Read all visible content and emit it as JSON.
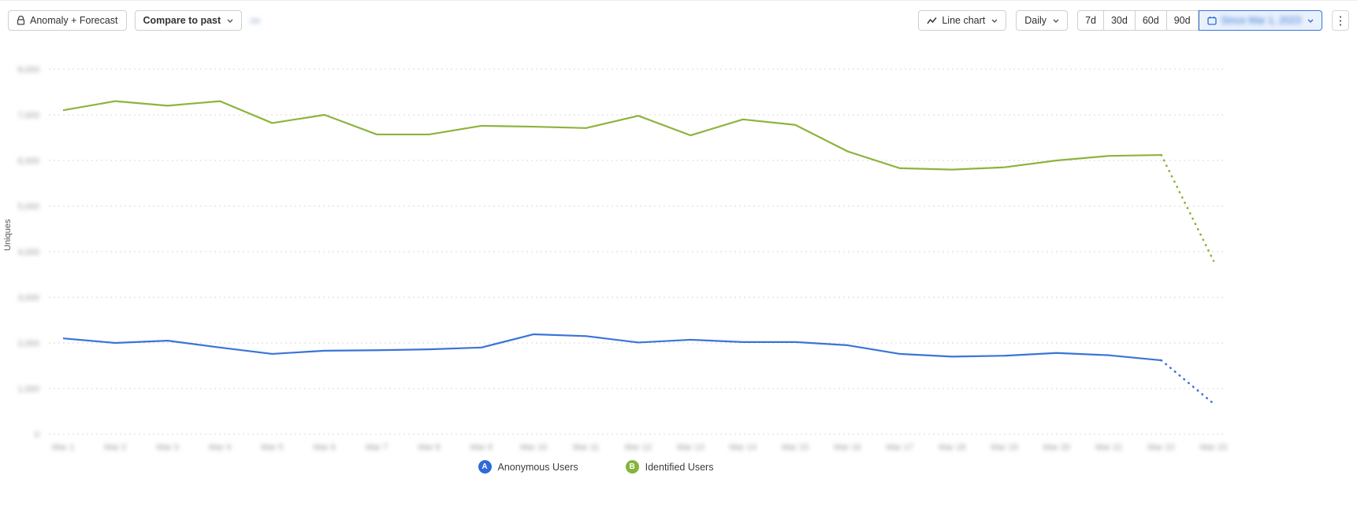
{
  "toolbar": {
    "anomaly": {
      "label": "Anomaly + Forecast"
    },
    "compare": {
      "label": "Compare to past"
    },
    "chart_type": {
      "label": "Line chart"
    },
    "granularity": {
      "label": "Daily"
    },
    "ranges": [
      {
        "label": "7d"
      },
      {
        "label": "30d"
      },
      {
        "label": "60d"
      },
      {
        "label": "90d"
      }
    ],
    "date_range": {
      "label": "Since Mar 1, 2023"
    },
    "more": {
      "label": "⋮"
    }
  },
  "colors": {
    "anonymous_blue": "#3a74d8",
    "identified_green": "#8cb43d",
    "grid": "#d9d9d9"
  },
  "chart_data": {
    "type": "line",
    "title": "",
    "xlabel": "",
    "ylabel": "Uniques",
    "grid": "horizontal-dashed",
    "legend_position": "bottom",
    "ylim": [
      0,
      8000
    ],
    "yticks": [
      0,
      1000,
      2000,
      3000,
      4000,
      5000,
      6000,
      7000,
      8000
    ],
    "x": [
      "Mar 1",
      "Mar 2",
      "Mar 3",
      "Mar 4",
      "Mar 5",
      "Mar 6",
      "Mar 7",
      "Mar 8",
      "Mar 9",
      "Mar 10",
      "Mar 11",
      "Mar 12",
      "Mar 13",
      "Mar 14",
      "Mar 15",
      "Mar 16",
      "Mar 17",
      "Mar 18",
      "Mar 19",
      "Mar 20",
      "Mar 21",
      "Mar 22",
      "Mar 23"
    ],
    "forecast_note": "last segment of each series is a dotted forecast",
    "series": [
      {
        "name": "Identified Users",
        "badge": "B",
        "color": "#8cb43d",
        "forecast_start_index": 21,
        "values": [
          7100,
          7300,
          7200,
          7300,
          6820,
          7000,
          6570,
          6570,
          6760,
          6740,
          6710,
          6980,
          6550,
          6900,
          6780,
          6200,
          5830,
          5800,
          5850,
          6000,
          6100,
          6120,
          3800
        ]
      },
      {
        "name": "Anonymous Users",
        "badge": "A",
        "color": "#3a74d8",
        "forecast_start_index": 21,
        "values": [
          2100,
          2000,
          2050,
          1900,
          1760,
          1830,
          1840,
          1860,
          1900,
          2190,
          2150,
          2010,
          2070,
          2020,
          2020,
          1950,
          1760,
          1700,
          1720,
          1780,
          1730,
          1620,
          670
        ]
      }
    ]
  },
  "legend": {
    "items": [
      {
        "badge": "A",
        "label": "Anonymous Users",
        "color": "#2e6bd9"
      },
      {
        "badge": "B",
        "label": "Identified Users",
        "color": "#85b43c"
      }
    ]
  }
}
